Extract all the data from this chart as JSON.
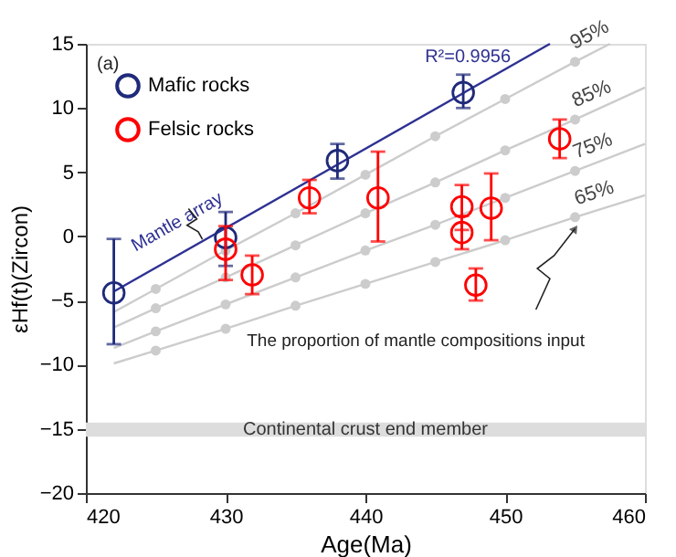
{
  "chart_data": {
    "type": "scatter",
    "xlabel": "Age(Ma)",
    "ylabel": "εHf(t)(Zircon)",
    "xlim": [
      420,
      460
    ],
    "xticks": [
      420,
      430,
      440,
      450,
      460
    ],
    "ylim": [
      -20,
      15
    ],
    "yticks": [
      -20,
      -15,
      -10,
      -5,
      0,
      5,
      10,
      15
    ],
    "grid": false,
    "legend": "top left",
    "marker": "circle",
    "line_style": "solid",
    "series": [
      {
        "name": "95%",
        "type": "line",
        "marker": "circle",
        "color": "#cccccc",
        "x": [
          422,
          425,
          430,
          435,
          440,
          445,
          450,
          455,
          457.5
        ],
        "values": [
          -5.9,
          -4.1,
          -1.1,
          1.8,
          4.8,
          7.8,
          10.7,
          13.6,
          15
        ]
      },
      {
        "name": "85%",
        "type": "line",
        "marker": "circle",
        "color": "#cccccc",
        "x": [
          422,
          425,
          430,
          435,
          440,
          445,
          450,
          455,
          460
        ],
        "values": [
          -7.1,
          -5.6,
          -3.2,
          -0.7,
          1.8,
          4.2,
          6.7,
          9.1,
          11.6
        ]
      },
      {
        "name": "75%",
        "type": "line",
        "marker": "circle",
        "color": "#cccccc",
        "x": [
          422,
          425,
          430,
          435,
          440,
          445,
          450,
          455,
          460
        ],
        "values": [
          -8.7,
          -7.4,
          -5.3,
          -3.2,
          -1.1,
          0.9,
          3.0,
          5.1,
          7.2
        ]
      },
      {
        "name": "65%",
        "type": "line",
        "marker": "circle",
        "color": "#cccccc",
        "x": [
          422,
          425,
          430,
          435,
          440,
          445,
          450,
          455,
          460
        ],
        "values": [
          -9.9,
          -8.9,
          -7.2,
          -5.4,
          -3.7,
          -2.0,
          -0.3,
          1.5,
          3.2
        ]
      },
      {
        "name": "Mantle array",
        "type": "line",
        "marker": "none",
        "color": "#2e3192",
        "x": [
          422,
          453.2
        ],
        "values": [
          -4.3,
          15
        ]
      },
      {
        "name": "Mafic rocks",
        "type": "scatter",
        "color": "#1f2a7a",
        "x": [
          422.0,
          430.0,
          438.0,
          447.0
        ],
        "values": [
          -4.4,
          -0.1,
          5.9,
          11.2
        ],
        "errors": [
          [
            -8.4,
            -0.2
          ],
          [
            -2.3,
            1.9
          ],
          [
            4.5,
            7.2
          ],
          [
            10.0,
            12.6
          ]
        ]
      },
      {
        "name": "Felsic rocks",
        "type": "scatter",
        "color": "#ff0000",
        "x": [
          430.0,
          431.9,
          436.0,
          440.9,
          446.9,
          446.9,
          449.0,
          453.9,
          447.9
        ],
        "values": [
          -1.0,
          -3.0,
          3.0,
          3.0,
          2.3,
          0.3,
          2.2,
          7.6,
          -3.8
        ],
        "errors": [
          [
            -3.4,
            0.8
          ],
          [
            -4.5,
            -1.5
          ],
          [
            1.8,
            4.4
          ],
          [
            -0.4,
            6.6
          ],
          [
            0.5,
            4.0
          ],
          [
            -1.0,
            1.6
          ],
          [
            -0.3,
            4.9
          ],
          [
            6.1,
            9.1
          ],
          [
            -5.0,
            -2.5
          ]
        ]
      }
    ],
    "bands": [
      {
        "axis": "y",
        "from": -15.6,
        "to": -14.5,
        "label": "Continental crust end member",
        "color": "#dddddd"
      }
    ],
    "annotations": [
      "(a)",
      "R²=0.9956",
      {
        "text": "The proportion of mantle compositions input",
        "x": 455,
        "y": 0.6
      }
    ]
  }
}
